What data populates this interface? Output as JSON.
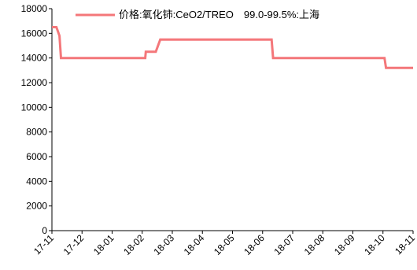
{
  "chart_data": {
    "type": "line",
    "title": "",
    "xlabel": "",
    "ylabel": "",
    "ylim": [
      0,
      18000
    ],
    "yticks": [
      0,
      2000,
      4000,
      6000,
      8000,
      10000,
      12000,
      14000,
      16000,
      18000
    ],
    "xtick_labels": [
      "17-11",
      "17-12",
      "18-01",
      "18-02",
      "18-03",
      "18-04",
      "18-05",
      "18-06",
      "18-07",
      "18-08",
      "18-09",
      "18-10",
      "18-11"
    ],
    "grid": false,
    "legend_position": "top",
    "series": [
      {
        "name": "价格:氧化铈:CeO2/TREO　99.0-99.5%:上海",
        "color": "#F4777A",
        "points": [
          {
            "x": "17-11",
            "y": 16500
          },
          {
            "x": "17-11.15",
            "y": 16500
          },
          {
            "x": "17-11.25",
            "y": 15800
          },
          {
            "x": "17-11.3",
            "y": 14000
          },
          {
            "x": "18-02.1",
            "y": 14000
          },
          {
            "x": "18-02.12",
            "y": 14500
          },
          {
            "x": "18-02.45",
            "y": 14500
          },
          {
            "x": "18-02.6",
            "y": 15500
          },
          {
            "x": "18-06.3",
            "y": 15500
          },
          {
            "x": "18-06.35",
            "y": 14000
          },
          {
            "x": "18-10.05",
            "y": 14000
          },
          {
            "x": "18-10.1",
            "y": 13200
          },
          {
            "x": "18-11",
            "y": 13200
          }
        ]
      }
    ]
  }
}
